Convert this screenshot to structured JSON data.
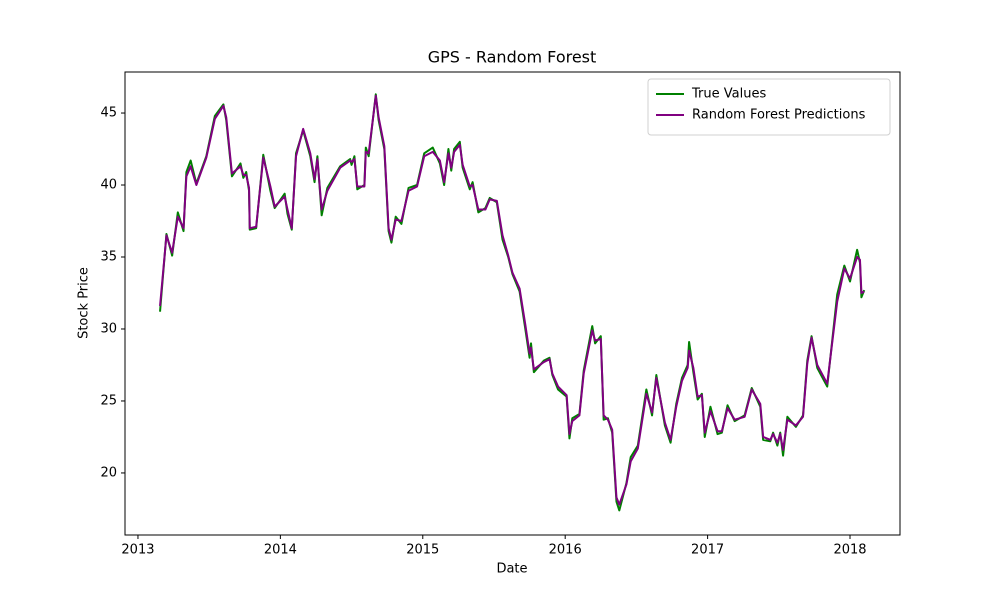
{
  "chart_data": {
    "type": "line",
    "title": "GPS - Random Forest",
    "x_label": "Date",
    "y_label": "Stock Price",
    "x": [
      2013.155,
      2013.2,
      2013.24,
      2013.28,
      2013.32,
      2013.34,
      2013.37,
      2013.41,
      2013.48,
      2013.54,
      2013.6,
      2013.62,
      2013.66,
      2013.72,
      2013.74,
      2013.76,
      2013.78,
      2013.785,
      2013.83,
      2013.88,
      2013.93,
      2013.96,
      2014.03,
      2014.05,
      2014.08,
      2014.11,
      2014.16,
      2014.21,
      2014.24,
      2014.26,
      2014.29,
      2014.33,
      2014.42,
      2014.49,
      2014.5,
      2014.52,
      2014.54,
      2014.59,
      2014.6,
      2014.62,
      2014.67,
      2014.69,
      2014.73,
      2014.76,
      2014.78,
      2014.81,
      2014.85,
      2014.9,
      2014.96,
      2015.01,
      2015.07,
      2015.12,
      2015.15,
      2015.18,
      2015.2,
      2015.22,
      2015.26,
      2015.28,
      2015.33,
      2015.35,
      2015.39,
      2015.44,
      2015.47,
      2015.52,
      2015.56,
      2015.6,
      2015.63,
      2015.68,
      2015.72,
      2015.75,
      2015.76,
      2015.78,
      2015.85,
      2015.89,
      2015.91,
      2015.95,
      2016.01,
      2016.03,
      2016.05,
      2016.1,
      2016.13,
      2016.19,
      2016.21,
      2016.25,
      2016.27,
      2016.3,
      2016.33,
      2016.36,
      2016.38,
      2016.43,
      2016.46,
      2016.51,
      2016.57,
      2016.61,
      2016.64,
      2016.7,
      2016.74,
      2016.78,
      2016.82,
      2016.86,
      2016.87,
      2016.9,
      2016.93,
      2016.96,
      2016.98,
      2017.02,
      2017.07,
      2017.1,
      2017.14,
      2017.19,
      2017.26,
      2017.31,
      2017.37,
      2017.39,
      2017.44,
      2017.46,
      2017.49,
      2017.51,
      2017.53,
      2017.56,
      2017.62,
      2017.67,
      2017.7,
      2017.73,
      2017.77,
      2017.84,
      2017.91,
      2017.96,
      2018.0,
      2018.05,
      2018.07,
      2018.08,
      2018.1
    ],
    "series": [
      {
        "name": "True Values",
        "color": "#008000",
        "values": [
          31.2,
          36.6,
          35.1,
          38.1,
          36.8,
          40.9,
          41.7,
          40.1,
          42.0,
          44.8,
          45.6,
          44.5,
          40.6,
          41.5,
          40.5,
          40.9,
          39.6,
          36.9,
          37.0,
          42.1,
          39.6,
          38.4,
          39.4,
          38.0,
          36.9,
          42.2,
          43.8,
          42.0,
          40.2,
          42.0,
          37.9,
          39.8,
          41.3,
          41.8,
          41.4,
          42.0,
          39.7,
          40.0,
          42.6,
          42.0,
          46.3,
          44.5,
          42.5,
          36.8,
          36.0,
          37.8,
          37.3,
          39.8,
          40.0,
          42.2,
          42.6,
          41.5,
          40.0,
          42.5,
          41.0,
          42.5,
          43.0,
          41.2,
          39.7,
          40.2,
          38.1,
          38.4,
          39.1,
          38.8,
          36.2,
          35.0,
          33.8,
          32.6,
          30.0,
          28.0,
          29.0,
          27.0,
          27.8,
          28.0,
          26.8,
          25.8,
          25.3,
          22.4,
          23.8,
          24.1,
          27.1,
          30.2,
          29.0,
          29.5,
          23.7,
          23.8,
          22.8,
          18.0,
          17.4,
          19.3,
          21.1,
          21.9,
          25.8,
          24.0,
          26.8,
          23.3,
          22.1,
          24.8,
          26.6,
          27.5,
          29.1,
          27.0,
          25.1,
          25.5,
          22.5,
          24.6,
          22.7,
          22.8,
          24.7,
          23.6,
          24.0,
          25.9,
          24.6,
          22.3,
          22.2,
          22.8,
          21.9,
          22.8,
          21.2,
          23.9,
          23.2,
          24.0,
          27.8,
          29.5,
          27.3,
          26.0,
          32.4,
          34.4,
          33.3,
          35.5,
          34.6,
          32.2,
          32.7
        ]
      },
      {
        "name": "Random Forest Predictions",
        "color": "#800080",
        "values": [
          31.6,
          36.5,
          35.3,
          37.8,
          37.0,
          40.6,
          41.3,
          40.0,
          41.9,
          44.6,
          45.5,
          44.7,
          40.8,
          41.3,
          40.7,
          40.7,
          39.8,
          37.0,
          37.1,
          41.9,
          39.9,
          38.5,
          39.2,
          38.3,
          37.0,
          42.0,
          43.9,
          42.2,
          40.4,
          41.8,
          38.3,
          39.6,
          41.2,
          41.7,
          41.6,
          41.8,
          39.9,
          39.9,
          42.3,
          42.2,
          46.2,
          44.7,
          42.7,
          37.0,
          36.2,
          37.6,
          37.5,
          39.6,
          39.9,
          42.0,
          42.3,
          41.7,
          40.2,
          42.2,
          41.2,
          42.3,
          42.8,
          41.4,
          39.9,
          40.0,
          38.3,
          38.3,
          39.0,
          38.9,
          36.5,
          35.1,
          33.9,
          32.8,
          30.3,
          28.3,
          28.7,
          27.2,
          27.7,
          27.9,
          26.9,
          26.0,
          25.4,
          22.7,
          23.6,
          24.0,
          26.9,
          29.9,
          29.2,
          29.3,
          24.0,
          23.7,
          23.0,
          18.3,
          17.8,
          19.2,
          20.8,
          21.7,
          25.5,
          24.2,
          26.6,
          23.5,
          22.3,
          24.6,
          26.4,
          27.3,
          28.5,
          27.3,
          25.3,
          25.4,
          22.8,
          24.3,
          22.9,
          22.9,
          24.5,
          23.7,
          23.9,
          25.8,
          24.8,
          22.5,
          22.3,
          22.7,
          22.1,
          22.7,
          21.6,
          23.7,
          23.3,
          23.9,
          27.6,
          29.4,
          27.5,
          26.2,
          31.9,
          34.2,
          33.5,
          35.0,
          34.8,
          32.5,
          32.6
        ]
      }
    ],
    "xlim": [
      2012.909,
      2018.351
    ],
    "xticks": [
      2013,
      2014,
      2015,
      2016,
      2017,
      2018
    ],
    "ylim": [
      15.69,
      47.85
    ],
    "yticks": [
      20,
      25,
      30,
      35,
      40,
      45
    ],
    "grid": false,
    "legend": "upper right"
  }
}
